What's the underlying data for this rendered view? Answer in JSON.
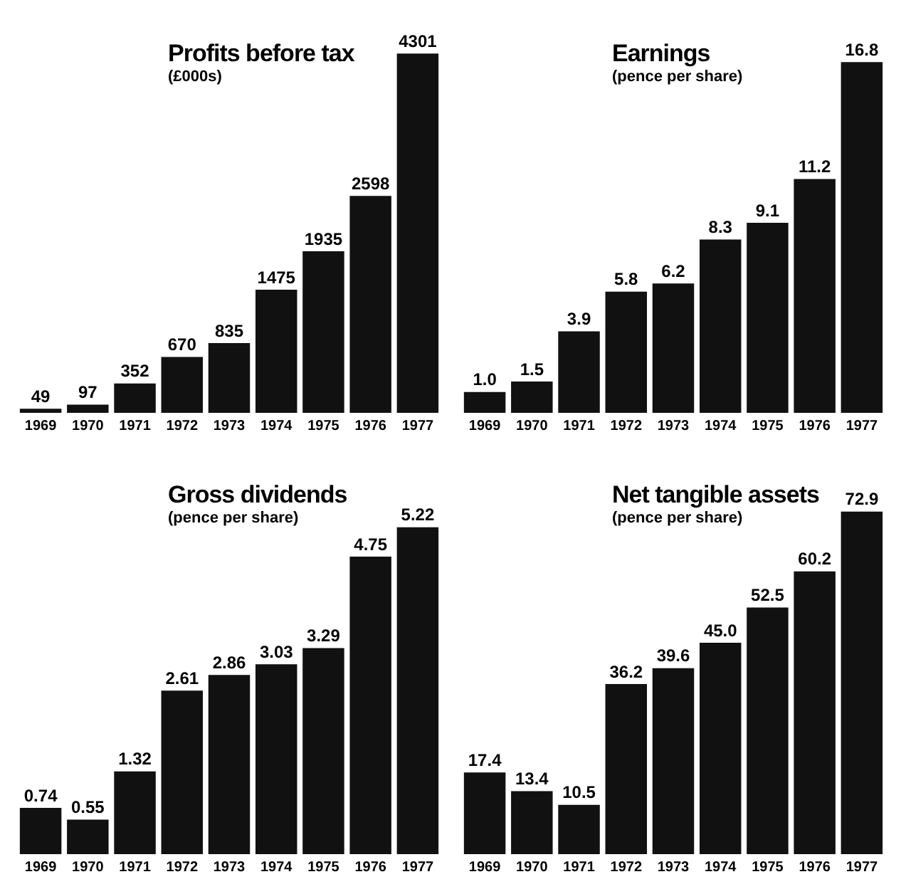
{
  "chart_data": [
    {
      "type": "bar",
      "title": "Profits before tax",
      "subtitle": "(£000s)",
      "categories": [
        "1969",
        "1970",
        "1971",
        "1972",
        "1973",
        "1974",
        "1975",
        "1976",
        "1977"
      ],
      "values": [
        49,
        97,
        352,
        670,
        835,
        1475,
        1935,
        2598,
        4301
      ],
      "value_labels": [
        "49",
        "97",
        "352",
        "670",
        "835",
        "1475",
        "1935",
        "2598",
        "4301"
      ],
      "color": "#111111",
      "grid": false,
      "legend": false,
      "tick_labels": "x"
    },
    {
      "type": "bar",
      "title": "Earnings",
      "subtitle": "(pence per share)",
      "categories": [
        "1969",
        "1970",
        "1971",
        "1972",
        "1973",
        "1974",
        "1975",
        "1976",
        "1977"
      ],
      "values": [
        1.0,
        1.5,
        3.9,
        5.8,
        6.2,
        8.3,
        9.1,
        11.2,
        16.8
      ],
      "value_labels": [
        "1.0",
        "1.5",
        "3.9",
        "5.8",
        "6.2",
        "8.3",
        "9.1",
        "11.2",
        "16.8"
      ],
      "color": "#111111",
      "grid": false,
      "legend": false,
      "tick_labels": "x"
    },
    {
      "type": "bar",
      "title": "Gross dividends",
      "subtitle": "(pence per share)",
      "categories": [
        "1969",
        "1970",
        "1971",
        "1972",
        "1973",
        "1974",
        "1975",
        "1976",
        "1977"
      ],
      "values": [
        0.74,
        0.55,
        1.32,
        2.61,
        2.86,
        3.03,
        3.29,
        4.75,
        5.22
      ],
      "value_labels": [
        "0.74",
        "0.55",
        "1.32",
        "2.61",
        "2.86",
        "3.03",
        "3.29",
        "4.75",
        "5.22"
      ],
      "color": "#111111",
      "grid": false,
      "legend": false,
      "tick_labels": "x"
    },
    {
      "type": "bar",
      "title": "Net tangible assets",
      "subtitle": "(pence per share)",
      "categories": [
        "1969",
        "1970",
        "1971",
        "1972",
        "1973",
        "1974",
        "1975",
        "1976",
        "1977"
      ],
      "values": [
        17.4,
        13.4,
        10.5,
        36.2,
        39.6,
        45.0,
        52.5,
        60.2,
        72.9
      ],
      "value_labels": [
        "17.4",
        "13.4",
        "10.5",
        "36.2",
        "39.6",
        "45.0",
        "52.5",
        "60.2",
        "72.9"
      ],
      "color": "#111111",
      "grid": false,
      "legend": false,
      "tick_labels": "x"
    }
  ]
}
